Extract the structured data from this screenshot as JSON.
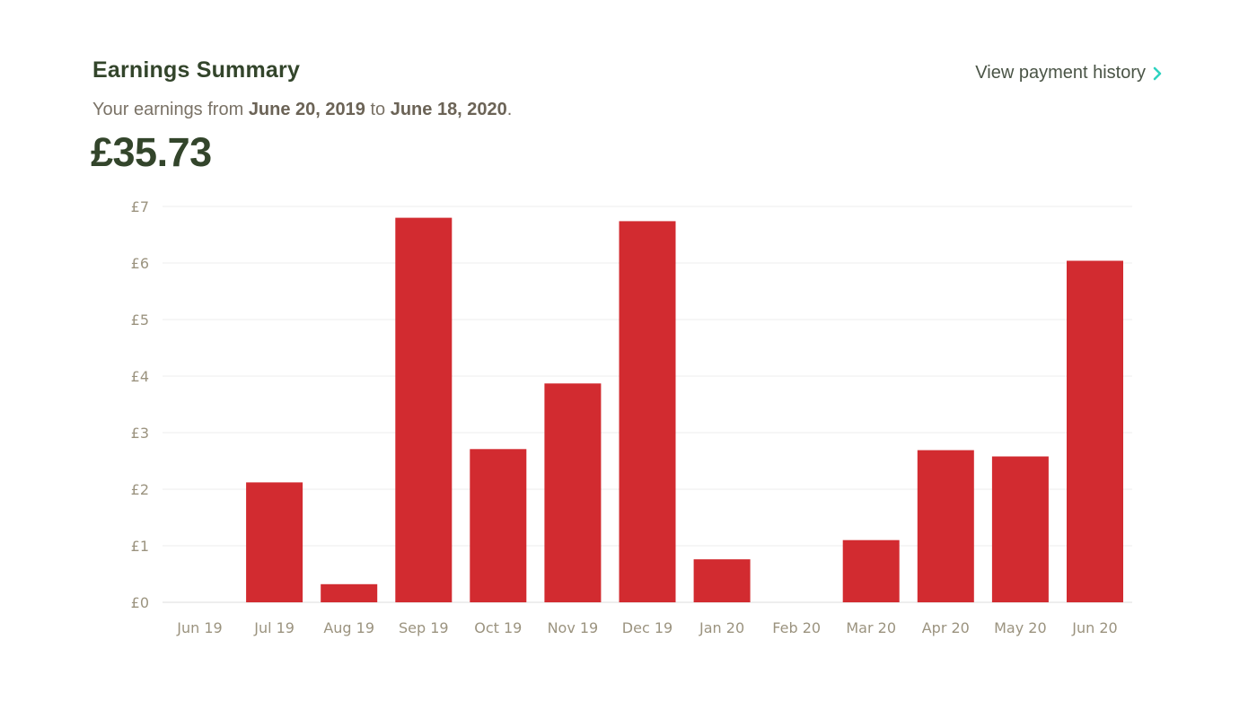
{
  "header": {
    "title": "Earnings Summary",
    "history_link_label": "View payment history",
    "subtitle_prefix": "Your earnings from ",
    "start_date": "June 20, 2019",
    "subtitle_middle": " to ",
    "end_date": "June 18, 2020",
    "subtitle_suffix": ".",
    "total": "£35.73"
  },
  "colors": {
    "bar": "#d22b30",
    "title": "#33452b",
    "link_chevron": "#2ed3c0",
    "tick_text": "#9b937f",
    "grid": "#ececec"
  },
  "icons": {
    "history_link": "chevron-right-icon"
  },
  "chart_data": {
    "type": "bar",
    "categories": [
      "Jun 19",
      "Jul 19",
      "Aug 19",
      "Sep 19",
      "Oct 19",
      "Nov 19",
      "Dec 19",
      "Jan 20",
      "Feb 20",
      "Mar 20",
      "Apr 20",
      "May 20",
      "Jun 20"
    ],
    "values": [
      0,
      2.12,
      0.32,
      6.8,
      2.71,
      3.87,
      6.74,
      0.76,
      0,
      1.1,
      2.69,
      2.58,
      6.04
    ],
    "y_ticks": [
      "£0",
      "£1",
      "£2",
      "£3",
      "£4",
      "£5",
      "£6",
      "£7"
    ],
    "ylim": [
      0,
      7
    ],
    "grid": true,
    "title": "",
    "xlabel": "",
    "ylabel": ""
  }
}
